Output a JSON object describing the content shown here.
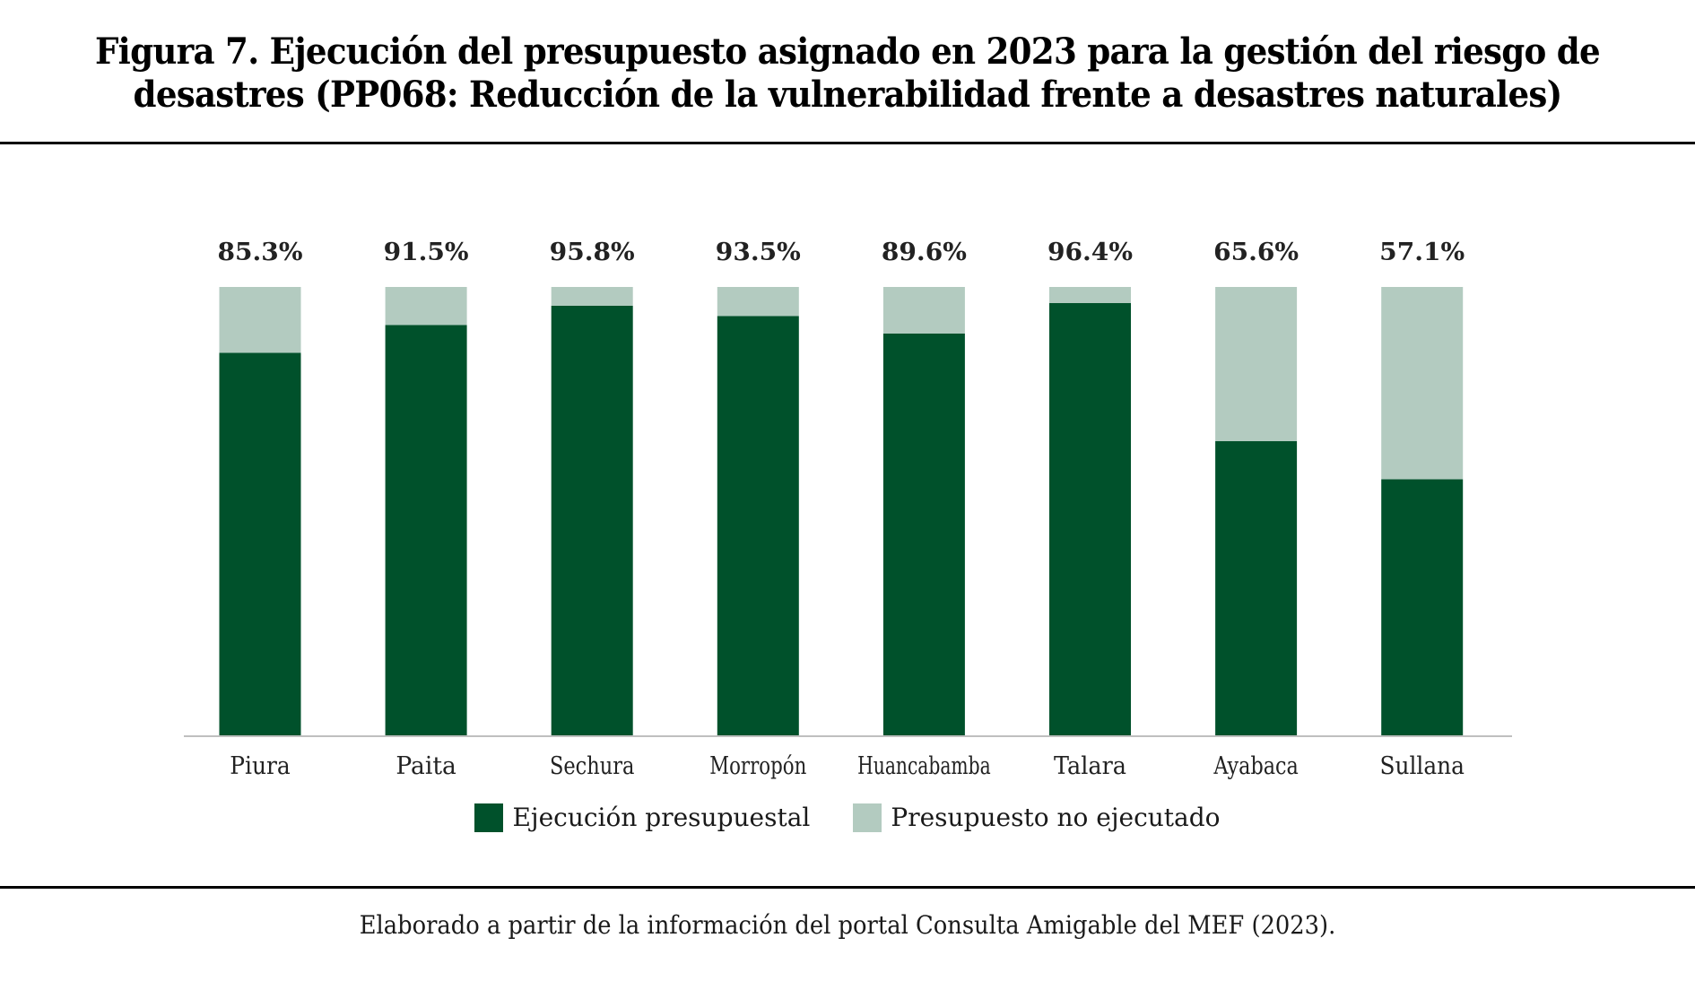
{
  "figure": {
    "title_line1": "Figura 7. Ejecución del presupuesto asignado en 2023 para la gestión del riesgo de",
    "title_line2": "desastres (PP068: Reducción de la vulnerabilidad frente a desastres naturales)",
    "caption": "Elaborado a partir de la información del portal Consulta Amigable del MEF (2023)."
  },
  "colors": {
    "executed": "#00512b",
    "not_executed": "#b3cbc0",
    "axis": "#bfbfbf",
    "label": "#222222"
  },
  "chart_data": {
    "type": "bar",
    "stacked": true,
    "title": "Figura 7. Ejecución del presupuesto asignado en 2023 para la gestión del riesgo de desastres (PP068: Reducción de la vulnerabilidad frente a desastres naturales)",
    "xlabel": "",
    "ylabel": "",
    "ylim": [
      0,
      100
    ],
    "grid": false,
    "legend_position": "bottom",
    "categories": [
      "Piura",
      "Paita",
      "Sechura",
      "Morropón",
      "Huancabamba",
      "Talara",
      "Ayabaca",
      "Sullana"
    ],
    "series": [
      {
        "name": "Ejecución presupuestal",
        "values": [
          85.3,
          91.5,
          95.8,
          93.5,
          89.6,
          96.4,
          65.6,
          57.1
        ]
      },
      {
        "name": "Presupuesto no ejecutado",
        "values": [
          14.7,
          8.5,
          4.2,
          6.5,
          10.4,
          3.6,
          34.4,
          42.9
        ]
      }
    ],
    "data_labels": [
      "85.3%",
      "91.5%",
      "95.8%",
      "93.5%",
      "89.6%",
      "96.4%",
      "65.6%",
      "57.1%"
    ]
  }
}
